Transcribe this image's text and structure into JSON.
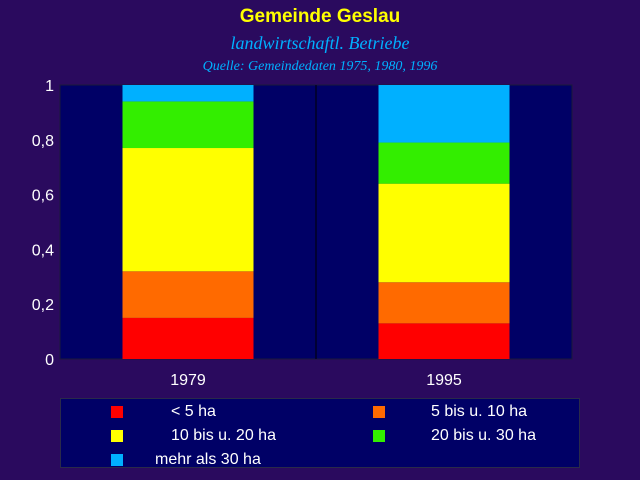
{
  "header": {
    "title": "Gemeinde Geslau",
    "subtitle": "landwirtschaftl. Betriebe",
    "source": "Quelle: Gemeindedaten 1975, 1980, 1996"
  },
  "chart_data": {
    "type": "bar",
    "stacked": true,
    "categories": [
      "1979",
      "1995"
    ],
    "series": [
      {
        "name": "< 5 ha",
        "color": "#ff0000",
        "values": [
          0.15,
          0.13
        ]
      },
      {
        "name": "5  bis u. 10 ha",
        "color": "#ff6a00",
        "values": [
          0.17,
          0.15
        ]
      },
      {
        "name": "10 bis u. 20 ha",
        "color": "#ffff00",
        "values": [
          0.45,
          0.36
        ]
      },
      {
        "name": "20 bis u. 30 ha",
        "color": "#33ee00",
        "values": [
          0.17,
          0.15
        ]
      },
      {
        "name": "mehr als 30 ha",
        "color": "#00b0ff",
        "values": [
          0.06,
          0.21
        ]
      }
    ],
    "ylim": [
      0,
      1
    ],
    "yticks": [
      "0",
      "0,2",
      "0,4",
      "0,6",
      "0,8",
      "1"
    ],
    "grid": true,
    "plot_background": "#000066",
    "legend_position": "bottom"
  }
}
